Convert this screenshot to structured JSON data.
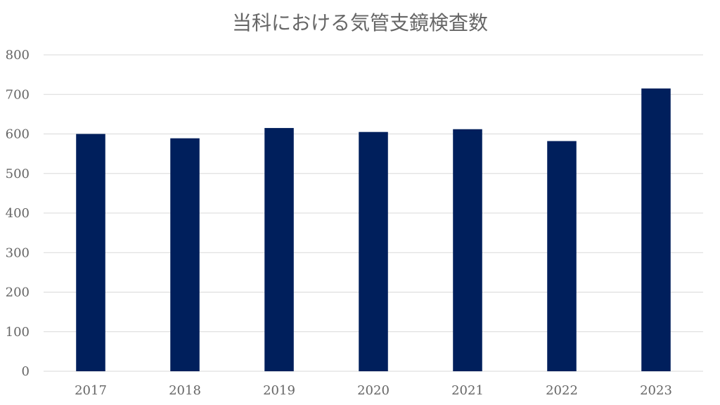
{
  "chart_data": {
    "type": "bar",
    "title": "当科における気管支鏡検査数",
    "categories": [
      "2017",
      "2018",
      "2019",
      "2020",
      "2021",
      "2022",
      "2023"
    ],
    "values": [
      600,
      589,
      615,
      605,
      612,
      582,
      715
    ],
    "ylim": [
      0,
      800
    ],
    "y_ticks": [
      "0",
      "100",
      "200",
      "300",
      "400",
      "500",
      "600",
      "700",
      "800"
    ],
    "grid": true,
    "colors": {
      "bar": "#001f5c",
      "grid": "#d9d9d9",
      "text": "#666666"
    }
  }
}
